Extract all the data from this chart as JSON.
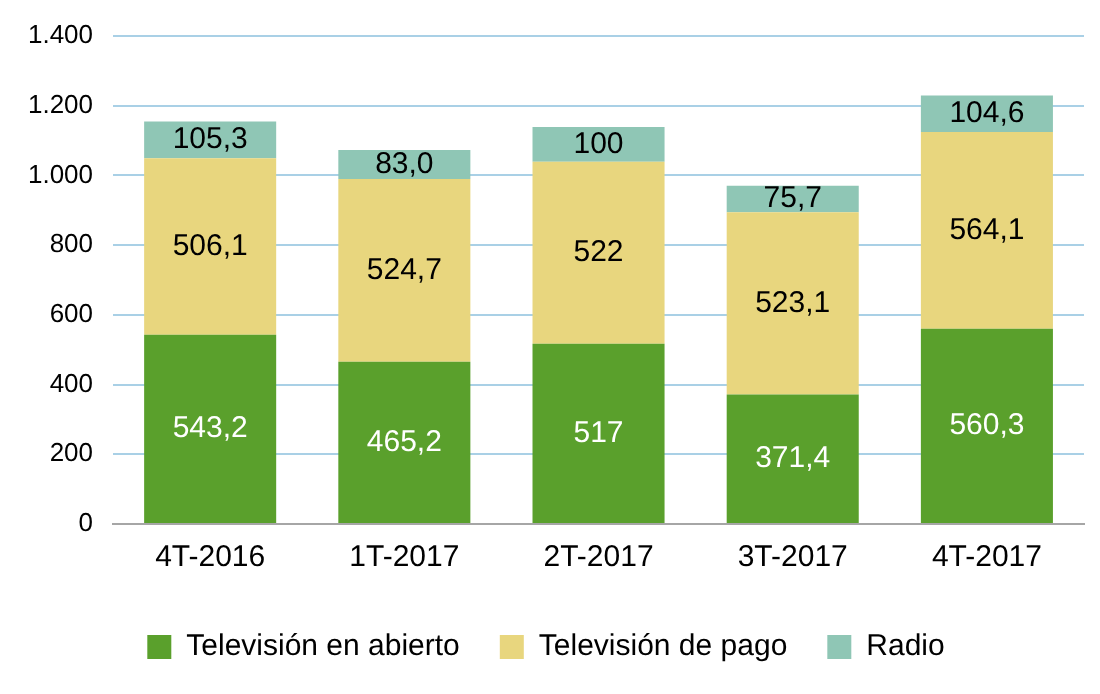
{
  "chart_data": {
    "type": "bar",
    "stacked": true,
    "categories": [
      "4T-2016",
      "1T-2017",
      "2T-2017",
      "3T-2017",
      "4T-2017"
    ],
    "series": [
      {
        "name": "Televisión en abierto",
        "color": "#5aa02c",
        "values": [
          543.2,
          465.2,
          517,
          371.4,
          560.3
        ],
        "value_labels": [
          "543,2",
          "465,2",
          "517",
          "371,4",
          "560,3"
        ]
      },
      {
        "name": "Televisión de pago",
        "color": "#e8d67e",
        "values": [
          506.1,
          524.7,
          522,
          523.1,
          564.1
        ],
        "value_labels": [
          "506,1",
          "524,7",
          "522",
          "523,1",
          "564,1"
        ]
      },
      {
        "name": "Radio",
        "color": "#8fc6b5",
        "values": [
          105.3,
          83.0,
          100,
          75.7,
          104.6
        ],
        "value_labels": [
          "105,3",
          "83,0",
          "100",
          "75,7",
          "104,6"
        ]
      }
    ],
    "ylim": [
      0,
      1400
    ],
    "yticks": [
      0,
      200,
      400,
      600,
      800,
      {
        "value": 1000,
        "label": "1.000"
      },
      {
        "value": 1200,
        "label": "1.200"
      },
      {
        "value": 1400,
        "label": "1.400"
      }
    ],
    "grid": "y",
    "legend": "bottom"
  }
}
